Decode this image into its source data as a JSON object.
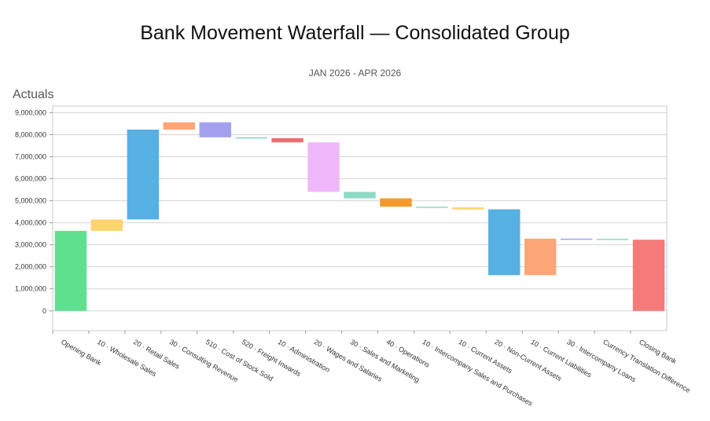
{
  "title": "Bank Movement Waterfall — Consolidated Group",
  "subtitle": "JAN 2026 - APR 2026",
  "section_label": "Actuals",
  "chart_data": {
    "type": "bar",
    "subtype": "waterfall",
    "ylim": [
      -900000,
      9300000
    ],
    "yticks": [
      0,
      1000000,
      2000000,
      3000000,
      4000000,
      5000000,
      6000000,
      7000000,
      8000000,
      9000000
    ],
    "ytick_labels": [
      "0",
      "1,000,000",
      "2,000,000",
      "3,000,000",
      "4,000,000",
      "5,000,000",
      "6,000,000",
      "7,000,000",
      "8,000,000",
      "9,000,000"
    ],
    "grid": true,
    "bars": [
      {
        "label": "Opening Bank",
        "start": 0,
        "end": 3630000,
        "color": "#5ee08f"
      },
      {
        "label": "10 · Wholesale Sales",
        "start": 3630000,
        "end": 4150000,
        "color": "#ffd36e"
      },
      {
        "label": "20 · Retail Sales",
        "start": 4150000,
        "end": 8230000,
        "color": "#56b0e3"
      },
      {
        "label": "30 · Consulting Revenue",
        "start": 8230000,
        "end": 8560000,
        "color": "#fca677"
      },
      {
        "label": "510 · Cost of Stock Sold",
        "start": 8560000,
        "end": 7880000,
        "color": "#a4a0f0"
      },
      {
        "label": "520 · Freight Inwards",
        "start": 7880000,
        "end": 7840000,
        "color": "#7fd6c4"
      },
      {
        "label": "10 · Administration",
        "start": 7840000,
        "end": 7650000,
        "color": "#ee6e6e"
      },
      {
        "label": "20 · Wages and Salaries",
        "start": 7650000,
        "end": 5400000,
        "color": "#f0b8fa"
      },
      {
        "label": "30 · Sales and Marketing",
        "start": 5400000,
        "end": 5110000,
        "color": "#8ed9c4"
      },
      {
        "label": "40 · Operations",
        "start": 5110000,
        "end": 4730000,
        "color": "#f49a2c"
      },
      {
        "label": "10 · Intercompany Sales and Purchases",
        "start": 4730000,
        "end": 4700000,
        "color": "#8fd6d0"
      },
      {
        "label": "10 · Current Assets",
        "start": 4700000,
        "end": 4610000,
        "color": "#ffd36e"
      },
      {
        "label": "20 · Non-Current Assets",
        "start": 4610000,
        "end": 1620000,
        "color": "#56b0e3"
      },
      {
        "label": "10 · Current Liabilities",
        "start": 1620000,
        "end": 3280000,
        "color": "#fca677"
      },
      {
        "label": "30 · Intercompany Loans",
        "start": 3280000,
        "end": 3270000,
        "color": "#a4a0f0"
      },
      {
        "label": "Currency Translation Difference",
        "start": 3270000,
        "end": 3230000,
        "color": "#8ed9c4"
      },
      {
        "label": "Closing Bank",
        "start": 0,
        "end": 3230000,
        "color": "#f57a7a"
      }
    ]
  }
}
